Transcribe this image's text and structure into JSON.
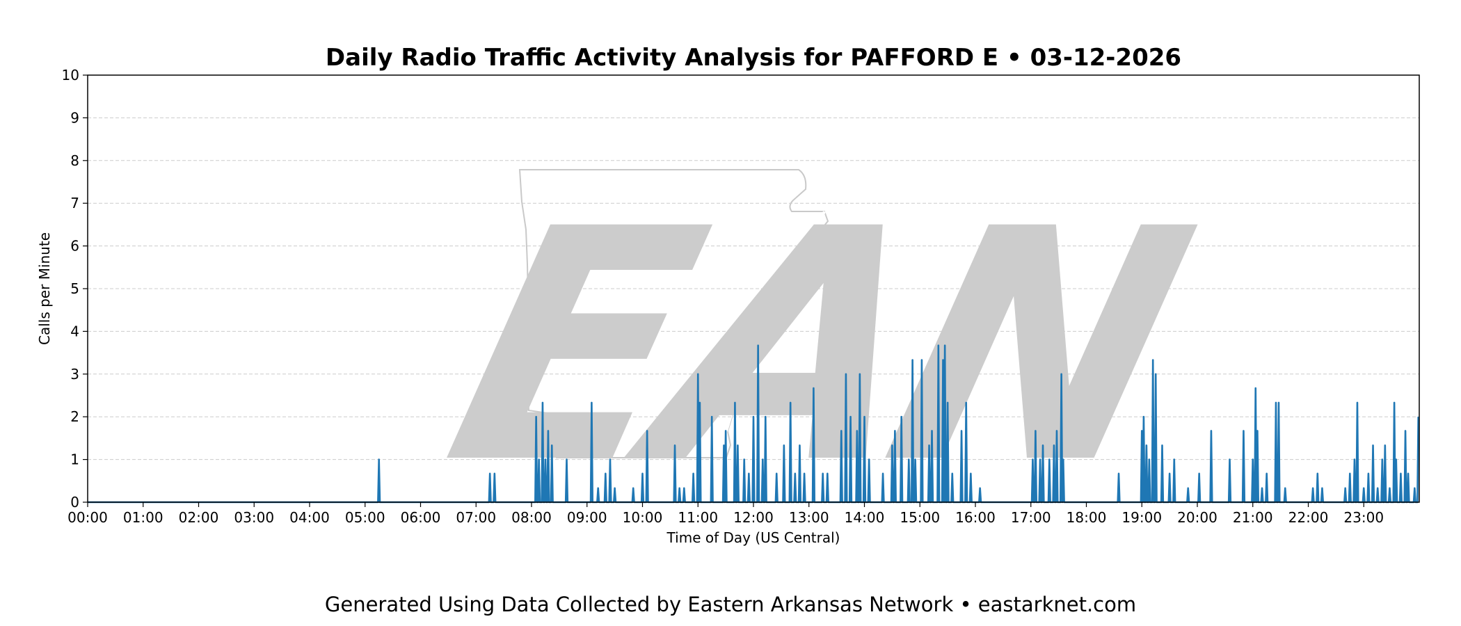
{
  "chart_data": {
    "type": "area",
    "title": "Daily Radio Traffic Activity Analysis for PAFFORD E • 03-12-2026",
    "xlabel": "Time of Day (US Central)",
    "ylabel": "Calls per Minute",
    "xlim": [
      "00:00",
      "24:00"
    ],
    "ylim": [
      0,
      10
    ],
    "yticks": [
      "0",
      "1",
      "2",
      "3",
      "4",
      "5",
      "6",
      "7",
      "8",
      "9",
      "10"
    ],
    "xticks": [
      "00:00",
      "01:00",
      "02:00",
      "03:00",
      "04:00",
      "05:00",
      "06:00",
      "07:00",
      "08:00",
      "09:00",
      "10:00",
      "11:00",
      "12:00",
      "13:00",
      "14:00",
      "15:00",
      "16:00",
      "17:00",
      "18:00",
      "19:00",
      "20:00",
      "21:00",
      "22:00",
      "23:00"
    ],
    "grid": "horizontal dashed",
    "line_color": "#1f77b4",
    "fill_color": "#a6c8e4",
    "watermark_text": "EAN",
    "series": [
      {
        "points": [
          [
            "05:15",
            1.0
          ],
          [
            "07:15",
            0.67
          ],
          [
            "07:20",
            0.67
          ],
          [
            "08:05",
            2.0
          ],
          [
            "08:08",
            1.0
          ],
          [
            "08:12",
            2.33
          ],
          [
            "08:15",
            1.0
          ],
          [
            "08:18",
            1.67
          ],
          [
            "08:22",
            1.33
          ],
          [
            "08:38",
            1.0
          ],
          [
            "09:05",
            2.33
          ],
          [
            "09:12",
            0.33
          ],
          [
            "09:20",
            0.67
          ],
          [
            "09:25",
            1.0
          ],
          [
            "09:30",
            0.33
          ],
          [
            "09:50",
            0.33
          ],
          [
            "10:00",
            0.67
          ],
          [
            "10:05",
            1.67
          ],
          [
            "10:35",
            1.33
          ],
          [
            "10:40",
            0.33
          ],
          [
            "10:45",
            0.33
          ],
          [
            "10:55",
            0.67
          ],
          [
            "11:00",
            3.0
          ],
          [
            "11:02",
            2.33
          ],
          [
            "11:15",
            2.0
          ],
          [
            "11:28",
            1.33
          ],
          [
            "11:30",
            1.67
          ],
          [
            "11:40",
            2.33
          ],
          [
            "11:43",
            1.33
          ],
          [
            "11:50",
            1.0
          ],
          [
            "11:55",
            0.67
          ],
          [
            "12:00",
            2.0
          ],
          [
            "12:05",
            3.67
          ],
          [
            "12:10",
            1.0
          ],
          [
            "12:13",
            2.0
          ],
          [
            "12:25",
            0.67
          ],
          [
            "12:33",
            1.33
          ],
          [
            "12:40",
            2.33
          ],
          [
            "12:45",
            0.67
          ],
          [
            "12:50",
            1.33
          ],
          [
            "12:55",
            0.67
          ],
          [
            "13:05",
            2.67
          ],
          [
            "13:15",
            0.67
          ],
          [
            "13:20",
            0.67
          ],
          [
            "13:35",
            1.67
          ],
          [
            "13:40",
            3.0
          ],
          [
            "13:45",
            2.0
          ],
          [
            "13:52",
            1.67
          ],
          [
            "13:55",
            3.0
          ],
          [
            "14:00",
            2.0
          ],
          [
            "14:05",
            1.0
          ],
          [
            "14:20",
            0.67
          ],
          [
            "14:30",
            1.33
          ],
          [
            "14:33",
            1.67
          ],
          [
            "14:40",
            2.0
          ],
          [
            "14:48",
            1.0
          ],
          [
            "14:52",
            3.33
          ],
          [
            "14:55",
            1.0
          ],
          [
            "15:02",
            3.33
          ],
          [
            "15:10",
            1.33
          ],
          [
            "15:13",
            1.67
          ],
          [
            "15:20",
            3.67
          ],
          [
            "15:25",
            3.33
          ],
          [
            "15:27",
            3.67
          ],
          [
            "15:30",
            2.33
          ],
          [
            "15:35",
            0.67
          ],
          [
            "15:45",
            1.67
          ],
          [
            "15:50",
            2.33
          ],
          [
            "15:55",
            0.67
          ],
          [
            "16:05",
            0.33
          ],
          [
            "17:02",
            1.0
          ],
          [
            "17:05",
            1.67
          ],
          [
            "17:10",
            1.0
          ],
          [
            "17:13",
            1.33
          ],
          [
            "17:20",
            1.0
          ],
          [
            "17:25",
            1.33
          ],
          [
            "17:28",
            1.67
          ],
          [
            "17:33",
            3.0
          ],
          [
            "17:35",
            1.0
          ],
          [
            "18:35",
            0.67
          ],
          [
            "19:00",
            1.67
          ],
          [
            "19:02",
            2.0
          ],
          [
            "19:05",
            1.33
          ],
          [
            "19:08",
            1.0
          ],
          [
            "19:12",
            3.33
          ],
          [
            "19:15",
            3.0
          ],
          [
            "19:22",
            1.33
          ],
          [
            "19:30",
            0.67
          ],
          [
            "19:35",
            1.0
          ],
          [
            "19:50",
            0.33
          ],
          [
            "20:02",
            0.67
          ],
          [
            "20:15",
            1.67
          ],
          [
            "20:35",
            1.0
          ],
          [
            "20:50",
            1.67
          ],
          [
            "21:00",
            1.0
          ],
          [
            "21:03",
            2.67
          ],
          [
            "21:05",
            1.67
          ],
          [
            "21:10",
            0.33
          ],
          [
            "21:15",
            0.67
          ],
          [
            "21:25",
            2.33
          ],
          [
            "21:28",
            2.33
          ],
          [
            "21:35",
            0.33
          ],
          [
            "22:05",
            0.33
          ],
          [
            "22:10",
            0.67
          ],
          [
            "22:15",
            0.33
          ],
          [
            "22:40",
            0.33
          ],
          [
            "22:45",
            0.67
          ],
          [
            "22:50",
            1.0
          ],
          [
            "22:53",
            2.33
          ],
          [
            "23:00",
            0.33
          ],
          [
            "23:05",
            0.67
          ],
          [
            "23:10",
            1.33
          ],
          [
            "23:15",
            0.33
          ],
          [
            "23:20",
            1.0
          ],
          [
            "23:23",
            1.33
          ],
          [
            "23:28",
            0.33
          ],
          [
            "23:33",
            2.33
          ],
          [
            "23:35",
            1.0
          ],
          [
            "23:40",
            0.67
          ],
          [
            "23:45",
            1.67
          ],
          [
            "23:48",
            0.67
          ],
          [
            "23:55",
            0.33
          ],
          [
            "23:59",
            2.0
          ]
        ]
      }
    ]
  },
  "footer": {
    "text": "Generated Using Data Collected by Eastern Arkansas Network • eastarknet.com"
  }
}
